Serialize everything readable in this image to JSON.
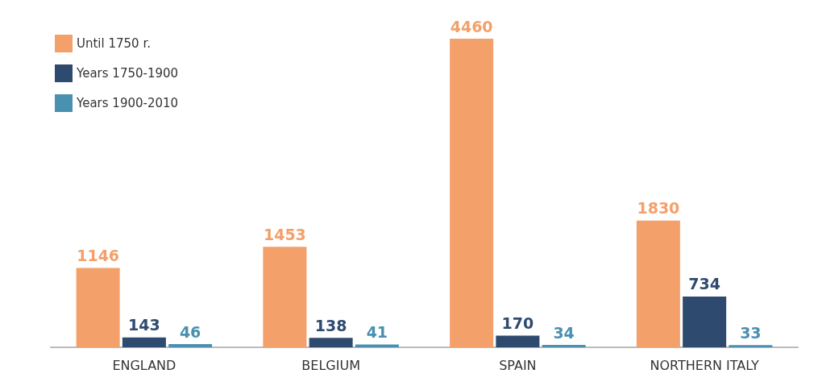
{
  "chart_data": {
    "type": "bar",
    "categories": [
      "ENGLAND",
      "BELGIUM",
      "SPAIN",
      "NORTHERN ITALY"
    ],
    "series": [
      {
        "name": "Until 1750 r.",
        "color": "#f4a06a",
        "values": [
          1146,
          1453,
          4460,
          1830
        ]
      },
      {
        "name": "Years 1750-1900",
        "color": "#2e4a6e",
        "values": [
          143,
          138,
          170,
          734
        ]
      },
      {
        "name": "Years 1900-2010",
        "color": "#4a90b0",
        "values": [
          46,
          41,
          34,
          33
        ]
      }
    ],
    "data_labels": true,
    "legend": "top left",
    "grid": false
  }
}
